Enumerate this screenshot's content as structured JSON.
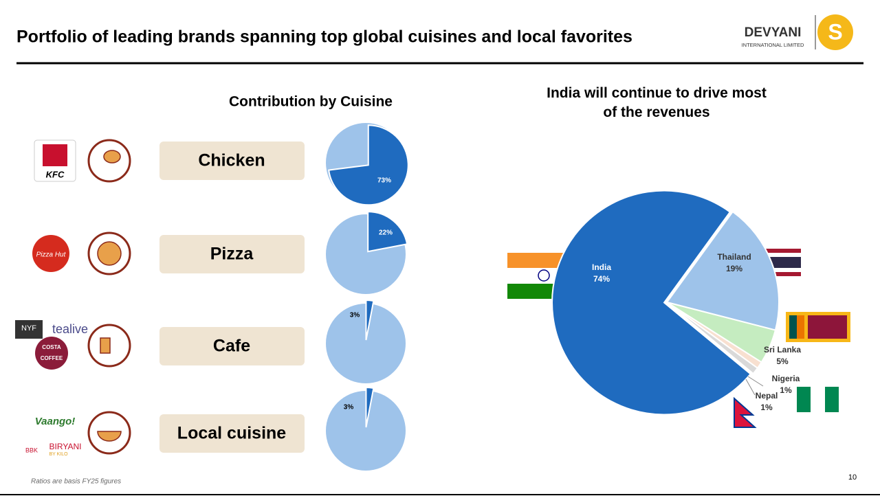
{
  "header": {
    "title": "Portfolio of leading brands spanning top global cuisines and local favorites",
    "logo_name": "DEVYANI",
    "logo_sub": "INTERNATIONAL LIMITED"
  },
  "section_title": "Contribution by Cuisine",
  "brands": [
    "KFC",
    "Pizza Hut",
    "NYF",
    "tealive",
    "COSTA",
    "COFFEE",
    "Vaango!",
    "BBK",
    "BIRYANI",
    "BY KILO"
  ],
  "footnote": "Ratios are basis FY25 figures",
  "page_number": "10",
  "chart_data": [
    {
      "type": "pie",
      "categories": [
        "Chicken"
      ],
      "values": [
        73
      ],
      "value_labels": [
        "73%"
      ],
      "color": "#1f6bbf",
      "rest_color": "#9ec3ea"
    },
    {
      "type": "pie",
      "categories": [
        "Pizza"
      ],
      "values": [
        22
      ],
      "value_labels": [
        "22%"
      ],
      "color": "#1f6bbf",
      "rest_color": "#9ec3ea"
    },
    {
      "type": "pie",
      "categories": [
        "Cafe"
      ],
      "values": [
        3
      ],
      "value_labels": [
        "3%"
      ],
      "color": "#1f6bbf",
      "rest_color": "#9ec3ea"
    },
    {
      "type": "pie",
      "categories": [
        "Local cuisine"
      ],
      "values": [
        3
      ],
      "value_labels": [
        "3%"
      ],
      "color": "#1f6bbf",
      "rest_color": "#9ec3ea"
    },
    {
      "type": "pie",
      "title": "India will continue to drive most of the revenues",
      "categories": [
        "India",
        "Thailand",
        "Sri Lanka",
        "Nigeria",
        "Nepal"
      ],
      "values": [
        74,
        19,
        5,
        1,
        1
      ],
      "value_labels": [
        "74%",
        "19%",
        "5%",
        "1%",
        "1%"
      ],
      "colors": [
        "#1f6bbf",
        "#9ec3ea",
        "#c5ecc0",
        "#f8e0d0",
        "#d9d9d9"
      ]
    }
  ]
}
